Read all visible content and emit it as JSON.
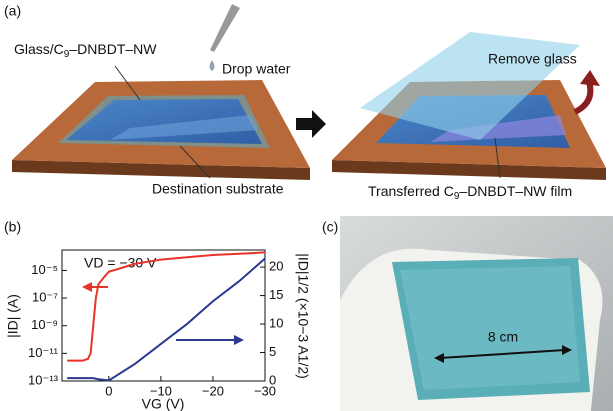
{
  "panel_a": {
    "label": "(a)",
    "film_label": [
      "Glass/C",
      "9",
      "–DNBDT–NW"
    ],
    "drop_label": "Drop water",
    "substrate_label": "Destination substrate",
    "remove_label": "Remove glass",
    "transferred_label": [
      "Transferred C",
      "9",
      "–DNBDT–NW film"
    ]
  },
  "chart_data": {
    "type": "line",
    "panel_label": "(b)",
    "annotation": "VD = −30 V",
    "xlabel": "VG (V)",
    "ylabel": "|ID| (A)",
    "y2label": "|ID|1/2 (×10−3 A1/2)",
    "x": [
      8,
      5,
      4,
      3.5,
      3,
      2.5,
      2,
      1,
      0,
      -5,
      -10,
      -15,
      -20,
      -25,
      -30
    ],
    "xlim": [
      9,
      -30
    ],
    "xticks": [
      0,
      {
        "value": -10,
        "label": "−10"
      },
      {
        "value": -20,
        "label": "−20"
      },
      {
        "value": -30,
        "label": "−30"
      }
    ],
    "yscale": "log",
    "ylim": [
      1e-13,
      0.0003
    ],
    "yticks": [
      {
        "value": 1e-13,
        "label": "10⁻¹³"
      },
      {
        "value": 1e-11,
        "label": "10⁻¹¹"
      },
      {
        "value": 1e-09,
        "label": "10⁻⁹"
      },
      {
        "value": 1e-07,
        "label": "10⁻⁷"
      },
      {
        "value": 1e-05,
        "label": "10⁻⁵"
      }
    ],
    "y2lim": [
      0,
      23
    ],
    "y2ticks": [
      0,
      5,
      10,
      15,
      20
    ],
    "series": [
      {
        "color": "#e8322a",
        "values": [
          3e-12,
          3e-12,
          4e-12,
          1e-11,
          1e-09,
          1e-07,
          1e-06,
          3e-06,
          8e-06,
          3e-05,
          6e-05,
          9e-05,
          0.00013,
          0.00016,
          0.0002
        ]
      },
      {
        "color": "#2b3990",
        "axis": "y2",
        "values": [
          0.5,
          0.5,
          0.5,
          0.5,
          0.5,
          0.4,
          0.3,
          0.2,
          0.1,
          3,
          6.5,
          10,
          14,
          17.5,
          21.5
        ]
      }
    ]
  },
  "panel_c": {
    "label": "(c)",
    "scale_label": "8 cm"
  }
}
